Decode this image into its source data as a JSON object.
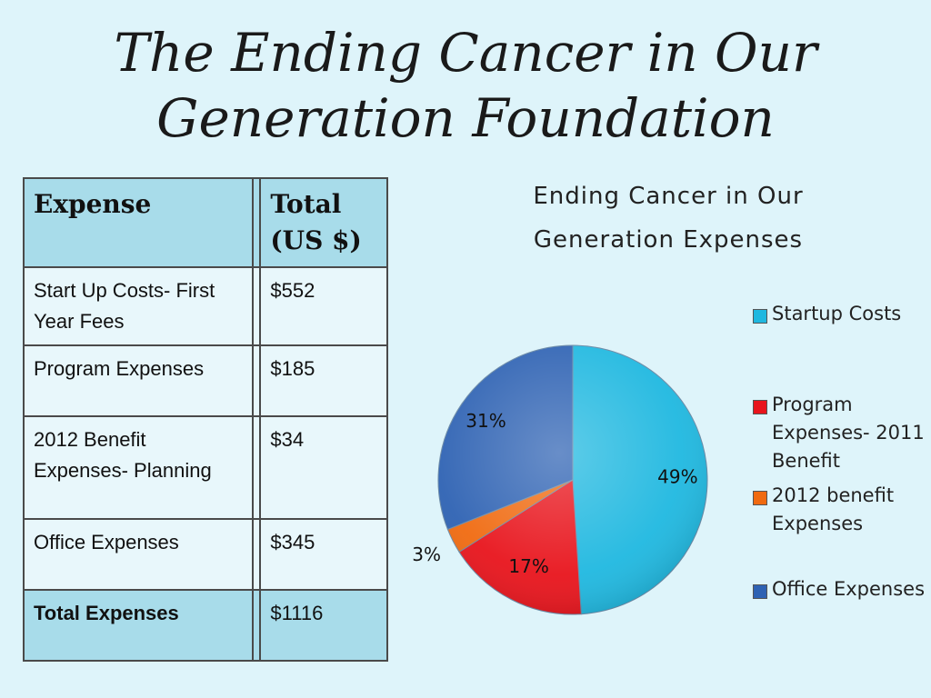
{
  "slide": {
    "title_line1": "The Ending Cancer in Our",
    "title_line2": "Generation Foundation"
  },
  "table": {
    "headers": [
      "Expense",
      "",
      "Total (US $)"
    ],
    "header_total_line1": "Total",
    "header_total_line2": "(US $)",
    "rows": [
      {
        "label": "Start Up Costs- First Year Fees",
        "value": "$552"
      },
      {
        "label": "Program Expenses",
        "value": "$185"
      },
      {
        "label": "2012 Benefit Expenses- Planning",
        "value": "$34"
      },
      {
        "label": "Office Expenses",
        "value": "$345"
      }
    ],
    "total": {
      "label": "Total Expenses",
      "value": "$1116"
    }
  },
  "chart_data": {
    "type": "pie",
    "title_line1": "Ending Cancer in Our",
    "title_line2": "Generation Expenses",
    "legend_position": "right",
    "slices": [
      {
        "name": "Startup Costs",
        "value": 49,
        "label": "49%",
        "color": "#1fb8e0"
      },
      {
        "name": "Program Expenses- 2011 Benefit",
        "value": 17,
        "label": "17%",
        "color": "#e8141c"
      },
      {
        "name": "2012 benefit Expenses",
        "value": 3,
        "label": "3%",
        "color": "#f06a10"
      },
      {
        "name": "Office Expenses",
        "value": 31,
        "label": "31%",
        "color": "#2e62b3"
      }
    ]
  }
}
